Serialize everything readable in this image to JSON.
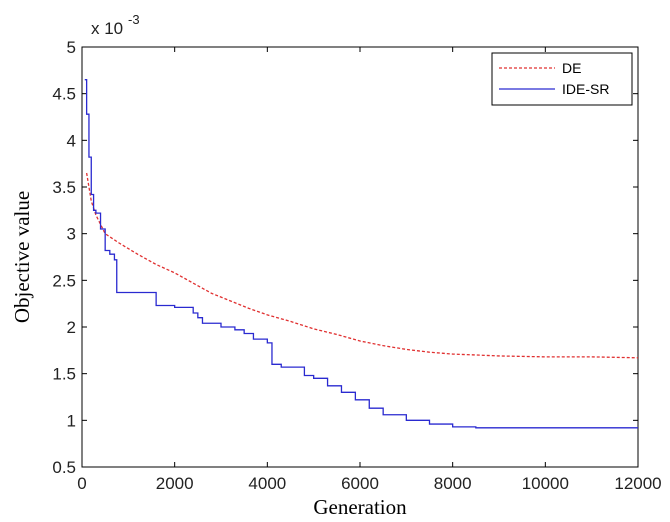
{
  "chart_data": {
    "type": "line",
    "xlabel": "Generation",
    "ylabel": "Objective value",
    "y_multiplier": {
      "base": "x 10",
      "exponent": "-3"
    },
    "xlim": [
      0,
      12000
    ],
    "ylim": [
      0.5,
      5
    ],
    "xticks": [
      0,
      2000,
      4000,
      6000,
      8000,
      10000,
      12000
    ],
    "yticks": [
      0.5,
      1,
      1.5,
      2,
      2.5,
      3,
      3.5,
      4,
      4.5,
      5
    ],
    "xtick_labels": [
      "0",
      "2000",
      "4000",
      "6000",
      "8000",
      "10000",
      "12000"
    ],
    "ytick_labels": [
      "0.5",
      "1",
      "1.5",
      "2",
      "2.5",
      "3",
      "3.5",
      "4",
      "4.5",
      "5"
    ],
    "grid": false,
    "legend_position": "top-right",
    "series": [
      {
        "name": "DE",
        "color": "#e03030",
        "style": "dashed",
        "x": [
          100,
          200,
          300,
          500,
          800,
          1200,
          1600,
          2000,
          2400,
          2800,
          3200,
          3600,
          4000,
          4500,
          5000,
          5500,
          6000,
          6500,
          7000,
          7500,
          8000,
          8500,
          9000,
          10000,
          11000,
          12000
        ],
        "y": [
          3.65,
          3.35,
          3.2,
          3.0,
          2.9,
          2.78,
          2.67,
          2.58,
          2.47,
          2.36,
          2.28,
          2.2,
          2.13,
          2.06,
          1.98,
          1.92,
          1.85,
          1.8,
          1.76,
          1.73,
          1.71,
          1.7,
          1.69,
          1.68,
          1.68,
          1.67
        ]
      },
      {
        "name": "IDE-SR",
        "color": "#2a2ad0",
        "style": "solid",
        "x": [
          60,
          100,
          150,
          200,
          250,
          300,
          400,
          500,
          600,
          700,
          750,
          1500,
          1600,
          2000,
          2400,
          2500,
          2600,
          3000,
          3300,
          3500,
          3700,
          4000,
          4100,
          4300,
          4800,
          5000,
          5300,
          5600,
          5900,
          6200,
          6500,
          7000,
          7500,
          8000,
          8500,
          12000
        ],
        "y": [
          4.65,
          4.28,
          3.82,
          3.42,
          3.25,
          3.22,
          3.05,
          2.82,
          2.78,
          2.72,
          2.37,
          2.37,
          2.23,
          2.21,
          2.15,
          2.1,
          2.04,
          2.0,
          1.97,
          1.93,
          1.87,
          1.83,
          1.6,
          1.57,
          1.48,
          1.45,
          1.37,
          1.3,
          1.22,
          1.13,
          1.06,
          1.0,
          0.96,
          0.93,
          0.92,
          0.92
        ]
      }
    ]
  }
}
